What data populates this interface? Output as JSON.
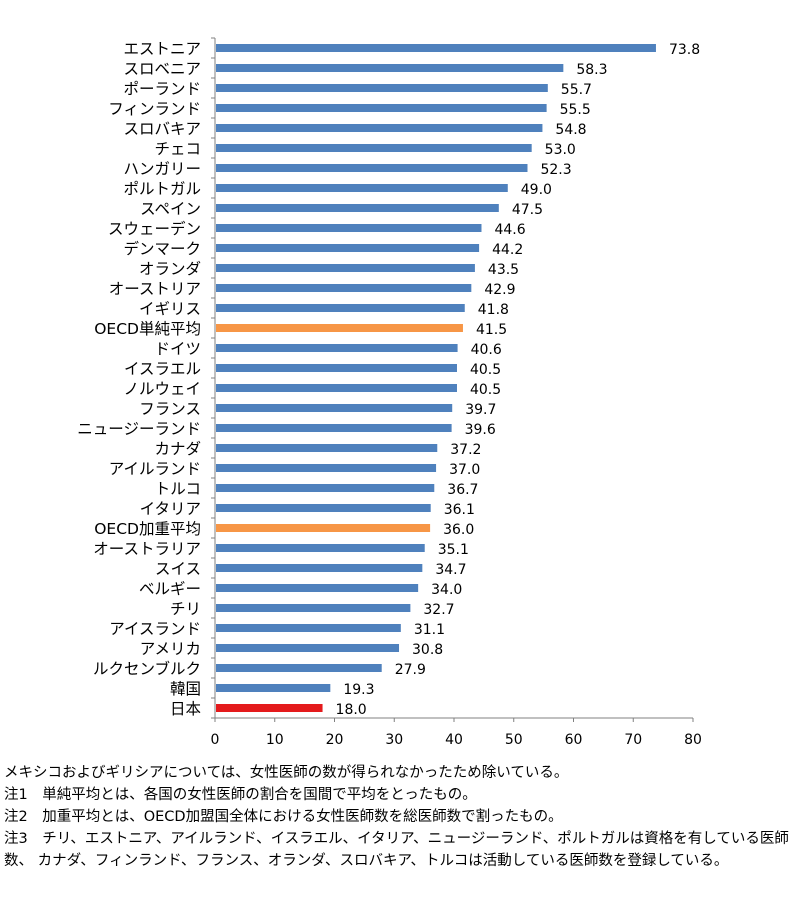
{
  "chart_data": {
    "type": "bar",
    "orientation": "horizontal",
    "categories": [
      "エストニア",
      "スロベニア",
      "ポーランド",
      "フィンランド",
      "スロバキア",
      "チェコ",
      "ハンガリー",
      "ポルトガル",
      "スペイン",
      "スウェーデン",
      "デンマーク",
      "オランダ",
      "オーストリア",
      "イギリス",
      "OECD単純平均",
      "ドイツ",
      "イスラエル",
      "ノルウェイ",
      "フランス",
      "ニュージーランド",
      "カナダ",
      "アイルランド",
      "トルコ",
      "イタリア",
      "OECD加重平均",
      "オーストラリア",
      "スイス",
      "ベルギー",
      "チリ",
      "アイスランド",
      "アメリカ",
      "ルクセンブルク",
      "韓国",
      "日本"
    ],
    "values": [
      73.8,
      58.3,
      55.7,
      55.5,
      54.8,
      53.0,
      52.3,
      49.0,
      47.5,
      44.6,
      44.2,
      43.5,
      42.9,
      41.8,
      41.5,
      40.6,
      40.5,
      40.5,
      39.7,
      39.6,
      37.2,
      37.0,
      36.7,
      36.1,
      36.0,
      35.1,
      34.7,
      34.0,
      32.7,
      31.1,
      30.8,
      27.9,
      19.3,
      18.0
    ],
    "value_labels": [
      "73.8",
      "58.3",
      "55.7",
      "55.5",
      "54.8",
      "53.0",
      "52.3",
      "49.0",
      "47.5",
      "44.6",
      "44.2",
      "43.5",
      "42.9",
      "41.8",
      "41.5",
      "40.6",
      "40.5",
      "40.5",
      "39.7",
      "39.6",
      "37.2",
      "37.0",
      "36.7",
      "36.1",
      "36.0",
      "35.1",
      "34.7",
      "34.0",
      "32.7",
      "31.1",
      "30.8",
      "27.9",
      "19.3",
      "18.0"
    ],
    "xlim": [
      0,
      80
    ],
    "xticks": [
      "0",
      "10",
      "20",
      "30",
      "40",
      "50",
      "60",
      "70",
      "80"
    ],
    "grid": false,
    "colors": {
      "default": "#4f81bd",
      "average": "#f79646",
      "japan": "#e41a1c"
    },
    "highlight": {
      "OECD単純平均": "average",
      "OECD加重平均": "average",
      "日本": "japan"
    }
  },
  "notes": [
    "メキシコおよびギリシアについては、女性医師の数が得られなかったため除いている。",
    "注1　単純平均とは、各国の女性医師の割合を国間で平均をとったもの。",
    "注2　加重平均とは、OECD加盟国全体における女性医師数を総医師数で割ったもの。",
    "注3　チリ、エストニア、アイルランド、イスラエル、イタリア、ニュージーランド、ポルトガルは資格を有している医師数、 カナダ、フィンランド、フランス、オランダ、スロバキア、トルコは活動している医師数を登録している。"
  ]
}
